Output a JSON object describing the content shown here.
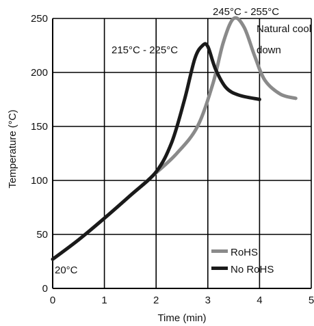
{
  "chart_data": {
    "type": "line",
    "xlabel": "Time (min)",
    "ylabel": "Temperature (°C)",
    "xlim": [
      0,
      5
    ],
    "ylim": [
      0,
      250
    ],
    "xticks": [
      "0",
      "1",
      "2",
      "3",
      "4",
      "5"
    ],
    "yticks": [
      "0",
      "50",
      "100",
      "150",
      "200",
      "250"
    ],
    "grid": true,
    "legend_placement": "bottom-right",
    "series": [
      {
        "name": "RoHS",
        "color": "#8a8a8a",
        "x": [
          0,
          0.5,
          1,
          1.5,
          2,
          2.4,
          2.8,
          3.1,
          3.3,
          3.5,
          3.7,
          3.9,
          4.1,
          4.4,
          4.7
        ],
        "y": [
          27,
          45,
          65,
          86,
          107,
          125,
          150,
          190,
          228,
          250,
          242,
          216,
          193,
          180,
          176
        ]
      },
      {
        "name": "No RoHS",
        "color": "#1a1a1a",
        "x": [
          0,
          0.5,
          1,
          1.5,
          2,
          2.3,
          2.55,
          2.75,
          2.9,
          3.0,
          3.15,
          3.35,
          3.6,
          4.0
        ],
        "y": [
          27,
          45,
          65,
          86,
          108,
          135,
          175,
          213,
          225,
          224,
          203,
          186,
          179,
          175
        ]
      }
    ],
    "annotations": [
      {
        "text": "245°C - 255°C"
      },
      {
        "text": "215°C - 225°C"
      },
      {
        "text": "Natural cool"
      },
      {
        "text": "down"
      },
      {
        "text": "20°C"
      }
    ]
  }
}
